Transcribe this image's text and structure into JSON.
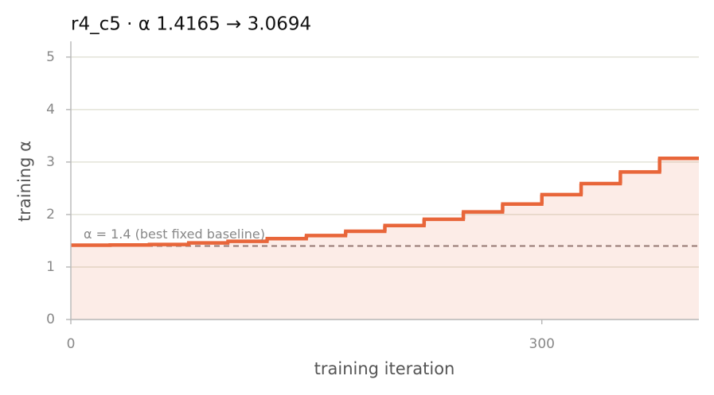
{
  "chart_data": {
    "type": "step",
    "title": "r4_c5   ·   α 1.4165 → 3.0694",
    "x_label": "training iteration",
    "y_label": "training α",
    "x": [
      0,
      25,
      50,
      75,
      100,
      125,
      150,
      175,
      200,
      225,
      250,
      275,
      300,
      325,
      350,
      375
    ],
    "values": [
      1.4165,
      1.42,
      1.43,
      1.46,
      1.49,
      1.54,
      1.6,
      1.68,
      1.79,
      1.91,
      2.05,
      2.2,
      2.38,
      2.59,
      2.81,
      3.0694
    ],
    "color": "#e8663a",
    "baseline": {
      "value": 1.4,
      "label": "α = 1.4 (best fixed baseline)"
    },
    "xlim": [
      0,
      400
    ],
    "ylim": [
      0,
      5.3
    ],
    "xticks": [
      0,
      300
    ],
    "yticks": [
      0,
      1,
      2,
      3,
      4,
      5
    ],
    "grid": true
  }
}
